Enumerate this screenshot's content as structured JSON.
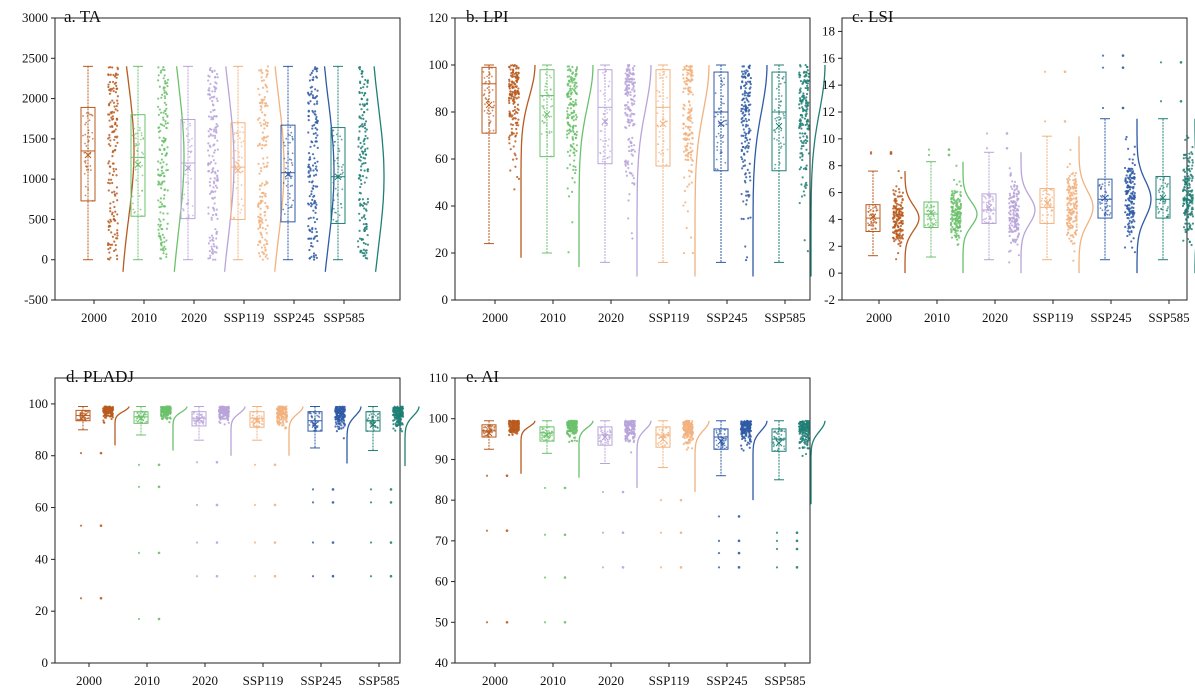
{
  "categories": [
    "2000",
    "2010",
    "2020",
    "SSP119",
    "SSP245",
    "SSP585"
  ],
  "colors": [
    "#b85a1f",
    "#6cc16c",
    "#b9a4d9",
    "#f2b27e",
    "#2f5aa6",
    "#1f7f75"
  ],
  "chart_data": [
    {
      "id": "TA",
      "type": "box-raincloud",
      "title": "a. TA",
      "ylim": [
        -500,
        3000
      ],
      "yticks": [
        "-500",
        "0",
        "500",
        "1000",
        "1500",
        "2000",
        "2500",
        "3000"
      ],
      "ytick_values": [
        -500,
        0,
        500,
        1000,
        1500,
        2000,
        2500,
        3000
      ],
      "series": [
        {
          "name": "2000",
          "q1": 730,
          "median": 1350,
          "q3": 1890,
          "whislo": 0,
          "whishi": 2400,
          "mean": 1300,
          "outliers": []
        },
        {
          "name": "2010",
          "q1": 540,
          "median": 1270,
          "q3": 1800,
          "whislo": 0,
          "whishi": 2400,
          "mean": 1180,
          "outliers": []
        },
        {
          "name": "2020",
          "q1": 510,
          "median": 1200,
          "q3": 1740,
          "whislo": 0,
          "whishi": 2400,
          "mean": 1140,
          "outliers": []
        },
        {
          "name": "SSP119",
          "q1": 500,
          "median": 1150,
          "q3": 1700,
          "whislo": 0,
          "whishi": 2400,
          "mean": 1110,
          "outliers": []
        },
        {
          "name": "SSP245",
          "q1": 470,
          "median": 1080,
          "q3": 1670,
          "whislo": 0,
          "whishi": 2400,
          "mean": 1060,
          "outliers": []
        },
        {
          "name": "SSP585",
          "q1": 450,
          "median": 1030,
          "q3": 1640,
          "whislo": 0,
          "whishi": 2400,
          "mean": 1030,
          "outliers": []
        }
      ]
    },
    {
      "id": "LPI",
      "type": "box-raincloud",
      "title": "b. LPI",
      "ylim": [
        0,
        120
      ],
      "yticks": [
        "0",
        "20",
        "40",
        "60",
        "80",
        "100",
        "120"
      ],
      "ytick_values": [
        0,
        20,
        40,
        60,
        80,
        100,
        120
      ],
      "series": [
        {
          "name": "2000",
          "q1": 71,
          "median": 92,
          "q3": 99,
          "whislo": 24,
          "whishi": 100,
          "mean": 83,
          "outliers": []
        },
        {
          "name": "2010",
          "q1": 61,
          "median": 87,
          "q3": 98,
          "whislo": 20,
          "whishi": 100,
          "mean": 79,
          "outliers": []
        },
        {
          "name": "2020",
          "q1": 58,
          "median": 82,
          "q3": 98,
          "whislo": 16,
          "whishi": 100,
          "mean": 76,
          "outliers": []
        },
        {
          "name": "SSP119",
          "q1": 57,
          "median": 82,
          "q3": 98,
          "whislo": 16,
          "whishi": 100,
          "mean": 75,
          "outliers": []
        },
        {
          "name": "SSP245",
          "q1": 55,
          "median": 80,
          "q3": 97,
          "whislo": 16,
          "whishi": 100,
          "mean": 75,
          "outliers": []
        },
        {
          "name": "SSP585",
          "q1": 55,
          "median": 80,
          "q3": 97,
          "whislo": 16,
          "whishi": 100,
          "mean": 74,
          "outliers": []
        }
      ]
    },
    {
      "id": "LSI",
      "type": "box-raincloud",
      "title": "c. LSI",
      "ylim": [
        -2,
        19
      ],
      "yticks": [
        "-2",
        "0",
        "2",
        "4",
        "6",
        "8",
        "10",
        "12",
        "14",
        "16",
        "18"
      ],
      "ytick_values": [
        -2,
        0,
        2,
        4,
        6,
        8,
        10,
        12,
        14,
        16,
        18
      ],
      "series": [
        {
          "name": "2000",
          "q1": 3.1,
          "median": 4.1,
          "q3": 5.1,
          "whislo": 1.3,
          "whishi": 7.6,
          "mean": 4.2,
          "outliers": [
            8.9,
            9.0
          ]
        },
        {
          "name": "2010",
          "q1": 3.4,
          "median": 4.4,
          "q3": 5.3,
          "whislo": 1.2,
          "whishi": 8.3,
          "mean": 4.5,
          "outliers": [
            8.8,
            9.2
          ]
        },
        {
          "name": "2020",
          "q1": 3.7,
          "median": 4.7,
          "q3": 5.9,
          "whislo": 1.0,
          "whishi": 9.0,
          "mean": 4.9,
          "outliers": [
            9.3,
            10.4
          ]
        },
        {
          "name": "SSP119",
          "q1": 3.7,
          "median": 4.9,
          "q3": 6.3,
          "whislo": 1.0,
          "whishi": 10.2,
          "mean": 5.2,
          "outliers": [
            11.3,
            15.0
          ]
        },
        {
          "name": "SSP245",
          "q1": 4.1,
          "median": 5.5,
          "q3": 7.0,
          "whislo": 1.0,
          "whishi": 11.5,
          "mean": 5.6,
          "outliers": [
            12.3,
            15.3,
            16.2
          ]
        },
        {
          "name": "SSP585",
          "q1": 4.1,
          "median": 5.5,
          "q3": 7.2,
          "whislo": 1.0,
          "whishi": 11.5,
          "mean": 5.6,
          "outliers": [
            12.8,
            15.7
          ]
        }
      ]
    },
    {
      "id": "PLADJ",
      "type": "box-raincloud",
      "title": "d. PLADJ",
      "ylim": [
        0,
        110
      ],
      "yticks": [
        "0",
        "20",
        "40",
        "60",
        "80",
        "100"
      ],
      "ytick_values": [
        0,
        20,
        40,
        60,
        80,
        100
      ],
      "series": [
        {
          "name": "2000",
          "q1": 93.5,
          "median": 95.5,
          "q3": 97.5,
          "whislo": 90,
          "whishi": 99,
          "mean": 95,
          "outliers": [
            81,
            53,
            25
          ]
        },
        {
          "name": "2010",
          "q1": 92.5,
          "median": 95,
          "q3": 97,
          "whislo": 88,
          "whishi": 99,
          "mean": 94.5,
          "outliers": [
            76.5,
            68,
            42.5,
            17
          ]
        },
        {
          "name": "2020",
          "q1": 91.5,
          "median": 94.5,
          "q3": 97,
          "whislo": 86,
          "whishi": 99,
          "mean": 94,
          "outliers": [
            77.5,
            61,
            46.5,
            33.5
          ]
        },
        {
          "name": "SSP119",
          "q1": 91,
          "median": 94.5,
          "q3": 97,
          "whislo": 86,
          "whishi": 99,
          "mean": 93.5,
          "outliers": [
            76.5,
            61,
            46.5,
            33.5
          ]
        },
        {
          "name": "SSP245",
          "q1": 89.5,
          "median": 93.5,
          "q3": 97,
          "whislo": 83,
          "whishi": 99,
          "mean": 92,
          "outliers": [
            67,
            62,
            46.5,
            33.5
          ]
        },
        {
          "name": "SSP585",
          "q1": 89.5,
          "median": 93.5,
          "q3": 97,
          "whislo": 82,
          "whishi": 99,
          "mean": 92,
          "outliers": [
            67,
            62,
            46.5,
            33.5
          ]
        }
      ]
    },
    {
      "id": "AI",
      "type": "box-raincloud",
      "title": "e. AI",
      "ylim": [
        40,
        110
      ],
      "yticks": [
        "40",
        "50",
        "60",
        "70",
        "80",
        "90",
        "100",
        "110"
      ],
      "ytick_values": [
        40,
        50,
        60,
        70,
        80,
        90,
        100,
        110
      ],
      "series": [
        {
          "name": "2000",
          "q1": 95.5,
          "median": 97,
          "q3": 98.5,
          "whislo": 92.5,
          "whishi": 99.5,
          "mean": 96.5,
          "outliers": [
            86,
            72.5,
            50
          ]
        },
        {
          "name": "2010",
          "q1": 94.5,
          "median": 96.5,
          "q3": 98,
          "whislo": 91.5,
          "whishi": 99.5,
          "mean": 96,
          "outliers": [
            83,
            71.5,
            61,
            50
          ]
        },
        {
          "name": "2020",
          "q1": 93.5,
          "median": 96,
          "q3": 98,
          "whislo": 89,
          "whishi": 99.5,
          "mean": 95.5,
          "outliers": [
            82,
            72,
            63.5
          ]
        },
        {
          "name": "SSP119",
          "q1": 93,
          "median": 96,
          "q3": 98,
          "whislo": 88,
          "whishi": 99.5,
          "mean": 95,
          "outliers": [
            80,
            72,
            63.5
          ]
        },
        {
          "name": "SSP245",
          "q1": 92.5,
          "median": 95.5,
          "q3": 97.5,
          "whislo": 86,
          "whishi": 99.5,
          "mean": 94.5,
          "outliers": [
            76,
            70,
            67,
            63.5
          ]
        },
        {
          "name": "SSP585",
          "q1": 92,
          "median": 95,
          "q3": 97.5,
          "whislo": 85,
          "whishi": 99.5,
          "mean": 94,
          "outliers": [
            72,
            70,
            68,
            63.5
          ]
        }
      ]
    }
  ]
}
